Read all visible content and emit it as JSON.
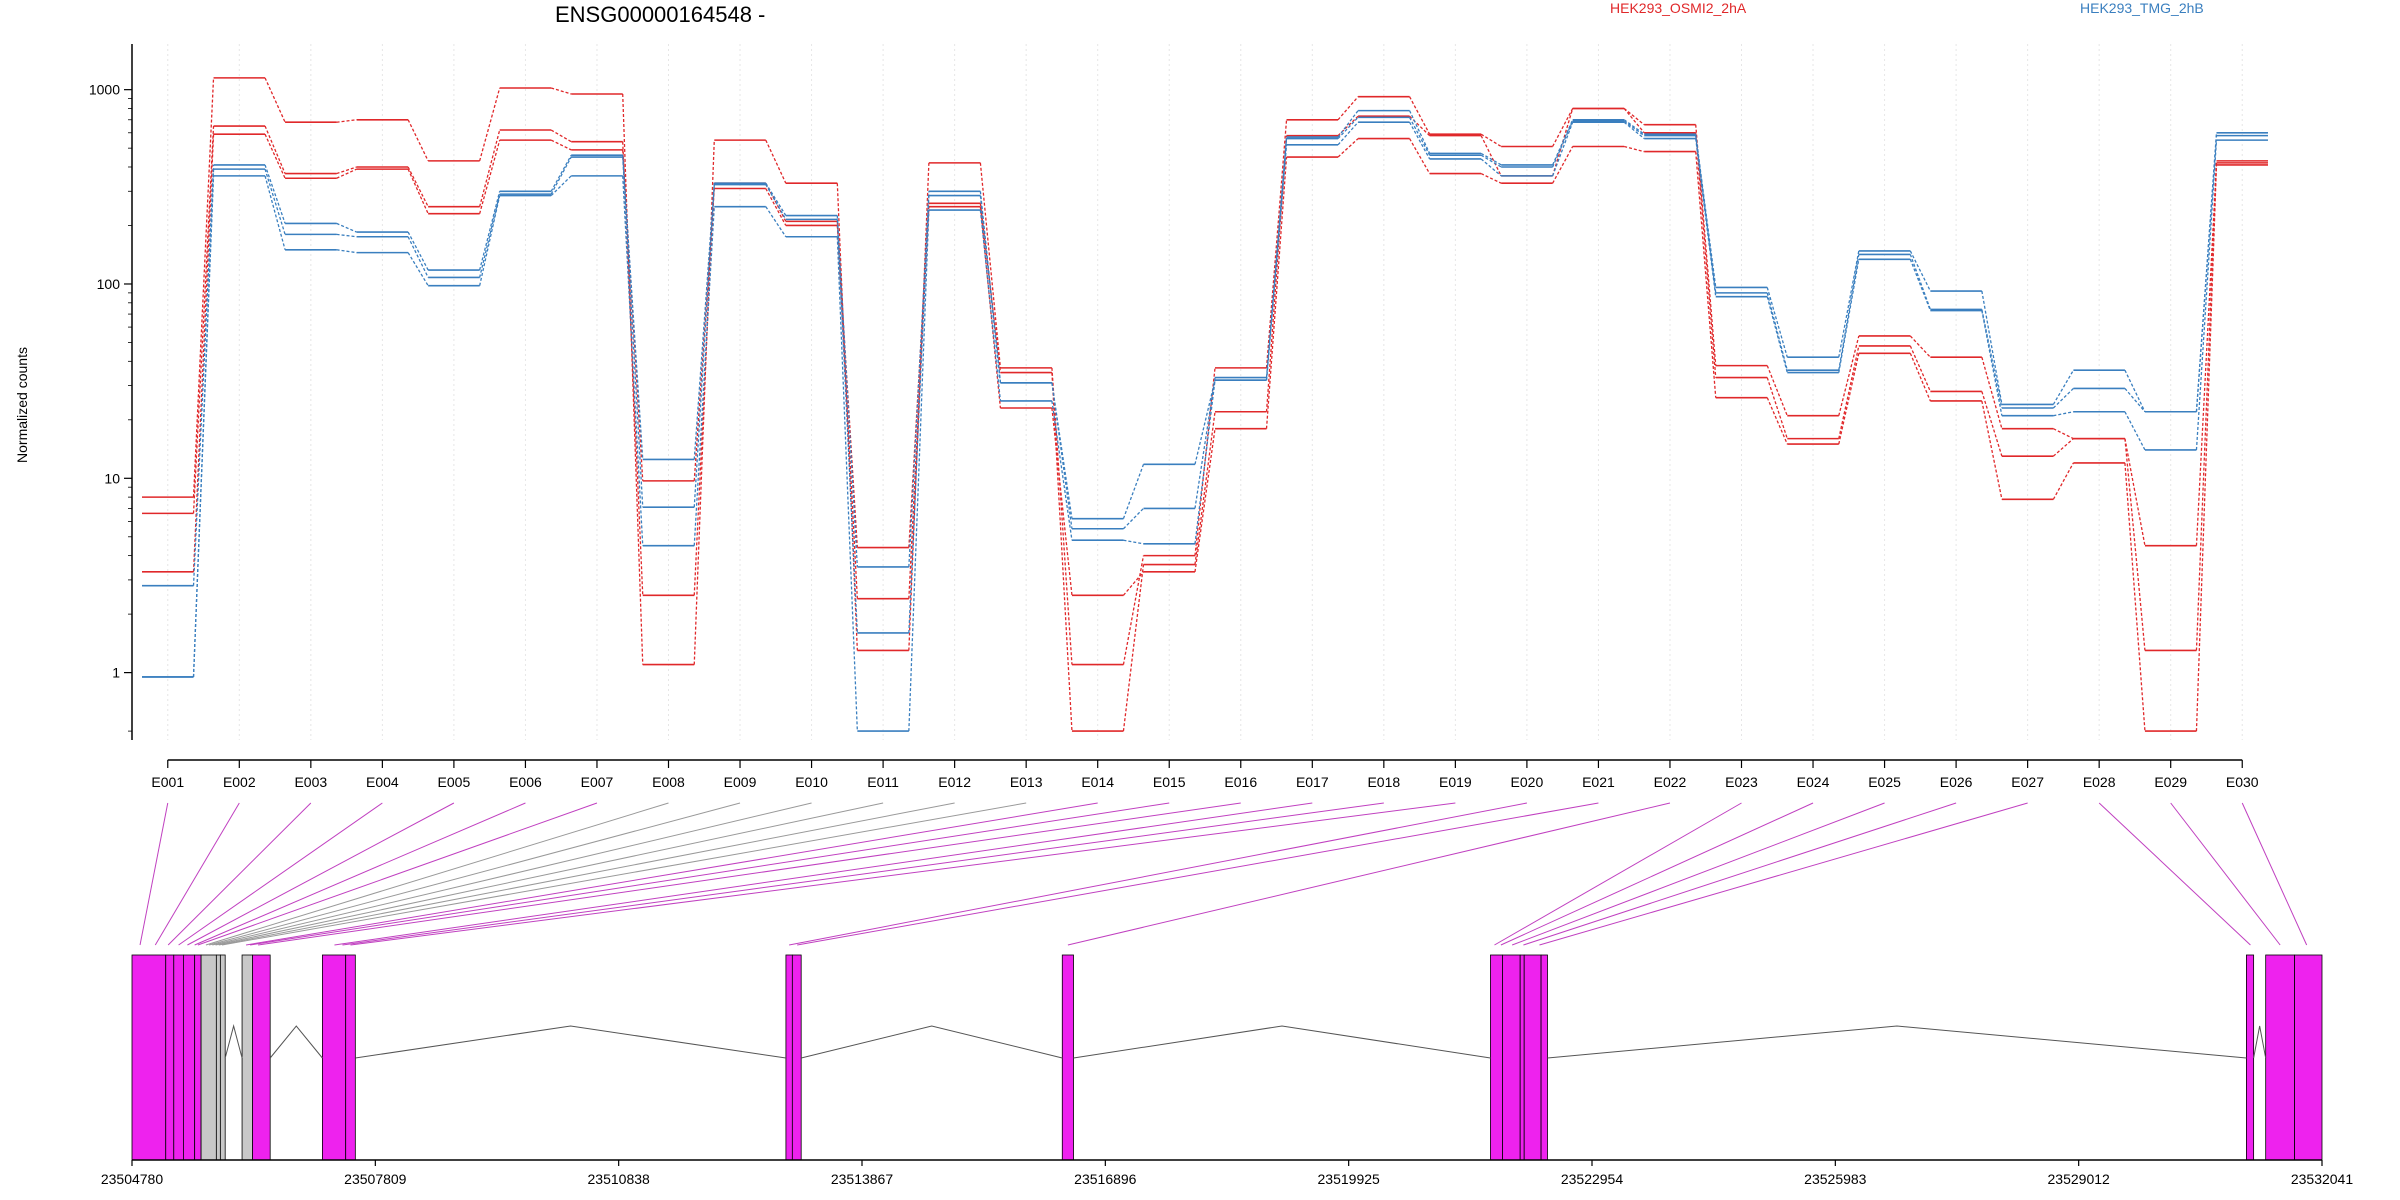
{
  "chart_data": {
    "type": "line",
    "title": "ENSG00000164548 -",
    "ylabel": "Normalized counts",
    "yscale": "log",
    "yticks": [
      "1000",
      "100",
      "10",
      "1"
    ],
    "ytick_values": [
      1000,
      100,
      10,
      1
    ],
    "ylim": [
      0.45,
      1600
    ],
    "categories": [
      "E001",
      "E002",
      "E003",
      "E004",
      "E005",
      "E006",
      "E007",
      "E008",
      "E009",
      "E010",
      "E011",
      "E012",
      "E013",
      "E014",
      "E015",
      "E016",
      "E017",
      "E018",
      "E019",
      "E020",
      "E021",
      "E022",
      "E023",
      "E024",
      "E025",
      "E026",
      "E027",
      "E028",
      "E029",
      "E030"
    ],
    "colors": {
      "HEK293_OSMI2_2hA": "#e0282a",
      "HEK293_TMG_2hB": "#3a7fbf"
    },
    "groups": [
      {
        "name": "HEK293_OSMI2_2hA",
        "color": "#e0282a",
        "series": [
          [
            8.0,
            1150,
            680,
            700,
            430,
            1020,
            950,
            1.1,
            550,
            330,
            1.3,
            420,
            37,
            1.1,
            4.0,
            37,
            700,
            920,
            590,
            510,
            800,
            660,
            38,
            21,
            54,
            42,
            18,
            16,
            4.5,
            420
          ],
          [
            6.6,
            650,
            370,
            400,
            250,
            620,
            540,
            2.5,
            330,
            210,
            2.4,
            260,
            35,
            0.5,
            3.6,
            22,
            580,
            730,
            580,
            360,
            800,
            600,
            33,
            16,
            48,
            28,
            13,
            16,
            1.3,
            430
          ],
          [
            3.3,
            590,
            350,
            390,
            230,
            550,
            490,
            9.7,
            310,
            200,
            4.4,
            250,
            23,
            2.5,
            3.3,
            18,
            450,
            560,
            370,
            330,
            510,
            480,
            26,
            15,
            44,
            25,
            7.8,
            12,
            0.5,
            410
          ]
        ]
      },
      {
        "name": "HEK293_TMG_2hB",
        "color": "#3a7fbf",
        "series": [
          [
            2.8,
            410,
            205,
            185,
            118,
            300,
            460,
            12.5,
            330,
            225,
            3.5,
            300,
            31,
            6.2,
            11.8,
            32,
            570,
            780,
            470,
            410,
            700,
            590,
            96,
            42,
            148,
            92,
            24,
            36,
            22,
            600
          ],
          [
            0.95,
            390,
            180,
            175,
            108,
            290,
            450,
            7.1,
            325,
            215,
            1.6,
            285,
            31,
            5.5,
            7.0,
            33,
            560,
            720,
            460,
            400,
            690,
            580,
            90,
            36,
            142,
            74,
            23,
            29,
            22,
            580
          ],
          [
            0.95,
            360,
            150,
            145,
            98,
            285,
            360,
            4.5,
            250,
            175,
            0.5,
            240,
            25,
            4.8,
            4.6,
            32,
            520,
            680,
            440,
            360,
            680,
            560,
            86,
            35,
            134,
            73,
            21,
            22,
            14,
            550
          ]
        ]
      }
    ],
    "legend": [
      {
        "label": "HEK293_OSMI2_2hA",
        "color": "#e0282a"
      },
      {
        "label": "HEK293_TMG_2hB",
        "color": "#3a7fbf"
      }
    ],
    "gene_model": {
      "coord_labels": [
        "23504780",
        "23507809",
        "23510838",
        "23513867",
        "23516896",
        "23519925",
        "23522954",
        "23525983",
        "23529012",
        "23532041"
      ],
      "range": [
        23504780,
        23532041
      ],
      "exon_color": "#ee22ee",
      "other_color": "#c8c8c8",
      "blocks": [
        {
          "s": 23504780,
          "e": 23505200,
          "c": "#ee22ee"
        },
        {
          "s": 23505200,
          "e": 23505300,
          "c": "#ee22ee"
        },
        {
          "s": 23505300,
          "e": 23505420,
          "c": "#ee22ee"
        },
        {
          "s": 23505420,
          "e": 23505560,
          "c": "#ee22ee"
        },
        {
          "s": 23505560,
          "e": 23505640,
          "c": "#ee22ee"
        },
        {
          "s": 23505640,
          "e": 23505830,
          "c": "#c8c8c8"
        },
        {
          "s": 23505830,
          "e": 23505880,
          "c": "#c8c8c8"
        },
        {
          "s": 23505880,
          "e": 23505940,
          "c": "#c8c8c8"
        },
        {
          "s": 23506150,
          "e": 23506280,
          "c": "#c8c8c8"
        },
        {
          "s": 23506280,
          "e": 23506500,
          "c": "#ee22ee"
        },
        {
          "s": 23507150,
          "e": 23507440,
          "c": "#ee22ee"
        },
        {
          "s": 23507440,
          "e": 23507560,
          "c": "#ee22ee"
        },
        {
          "s": 23512920,
          "e": 23513000,
          "c": "#ee22ee"
        },
        {
          "s": 23513000,
          "e": 23513110,
          "c": "#ee22ee"
        },
        {
          "s": 23516360,
          "e": 23516500,
          "c": "#ee22ee"
        },
        {
          "s": 23521690,
          "e": 23521840,
          "c": "#ee22ee"
        },
        {
          "s": 23521840,
          "e": 23522060,
          "c": "#ee22ee"
        },
        {
          "s": 23522060,
          "e": 23522110,
          "c": "#ee22ee"
        },
        {
          "s": 23522110,
          "e": 23522320,
          "c": "#ee22ee"
        },
        {
          "s": 23522320,
          "e": 23522400,
          "c": "#ee22ee"
        },
        {
          "s": 23531100,
          "e": 23531190,
          "c": "#ee22ee"
        },
        {
          "s": 23531340,
          "e": 23531700,
          "c": "#ee22ee"
        },
        {
          "s": 23531700,
          "e": 23532041,
          "c": "#ee22ee"
        }
      ],
      "introns": [
        [
          23505940,
          23506150
        ],
        [
          23506500,
          23507150
        ],
        [
          23507560,
          23512920
        ],
        [
          23513110,
          23516360
        ],
        [
          23516500,
          23521690
        ],
        [
          23522400,
          23531100
        ],
        [
          23531190,
          23531340
        ]
      ],
      "connectors": [
        23504880,
        23505070,
        23505230,
        23505360,
        23505470,
        23505560,
        23505600,
        23505700,
        23505740,
        23505780,
        23505820,
        23505860,
        23505900,
        23506200,
        23506250,
        23506350,
        23507300,
        23507400,
        23507500,
        23512960,
        23513060,
        23516430,
        23521740,
        23521820,
        23521960,
        23522100,
        23522300,
        23531150,
        23531520,
        23531850
      ]
    }
  }
}
